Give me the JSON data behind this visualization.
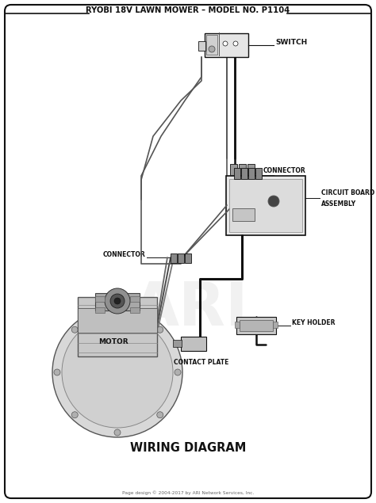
{
  "title": "RYOBI 18V LAWN MOWER – MODEL NO. P1104",
  "subtitle": "WIRING DIAGRAM",
  "footer": "Page design © 2004-2017 by ARI Network Services, Inc.",
  "bg_color": "#ffffff",
  "col": "#111111",
  "gray1": "#555555",
  "gray2": "#888888",
  "gray3": "#bbbbbb",
  "gray4": "#cccccc",
  "gray5": "#e0e0e0",
  "figsize": [
    4.74,
    6.35
  ],
  "dpi": 100,
  "xlim": [
    0,
    474
  ],
  "ylim": [
    0,
    635
  ]
}
